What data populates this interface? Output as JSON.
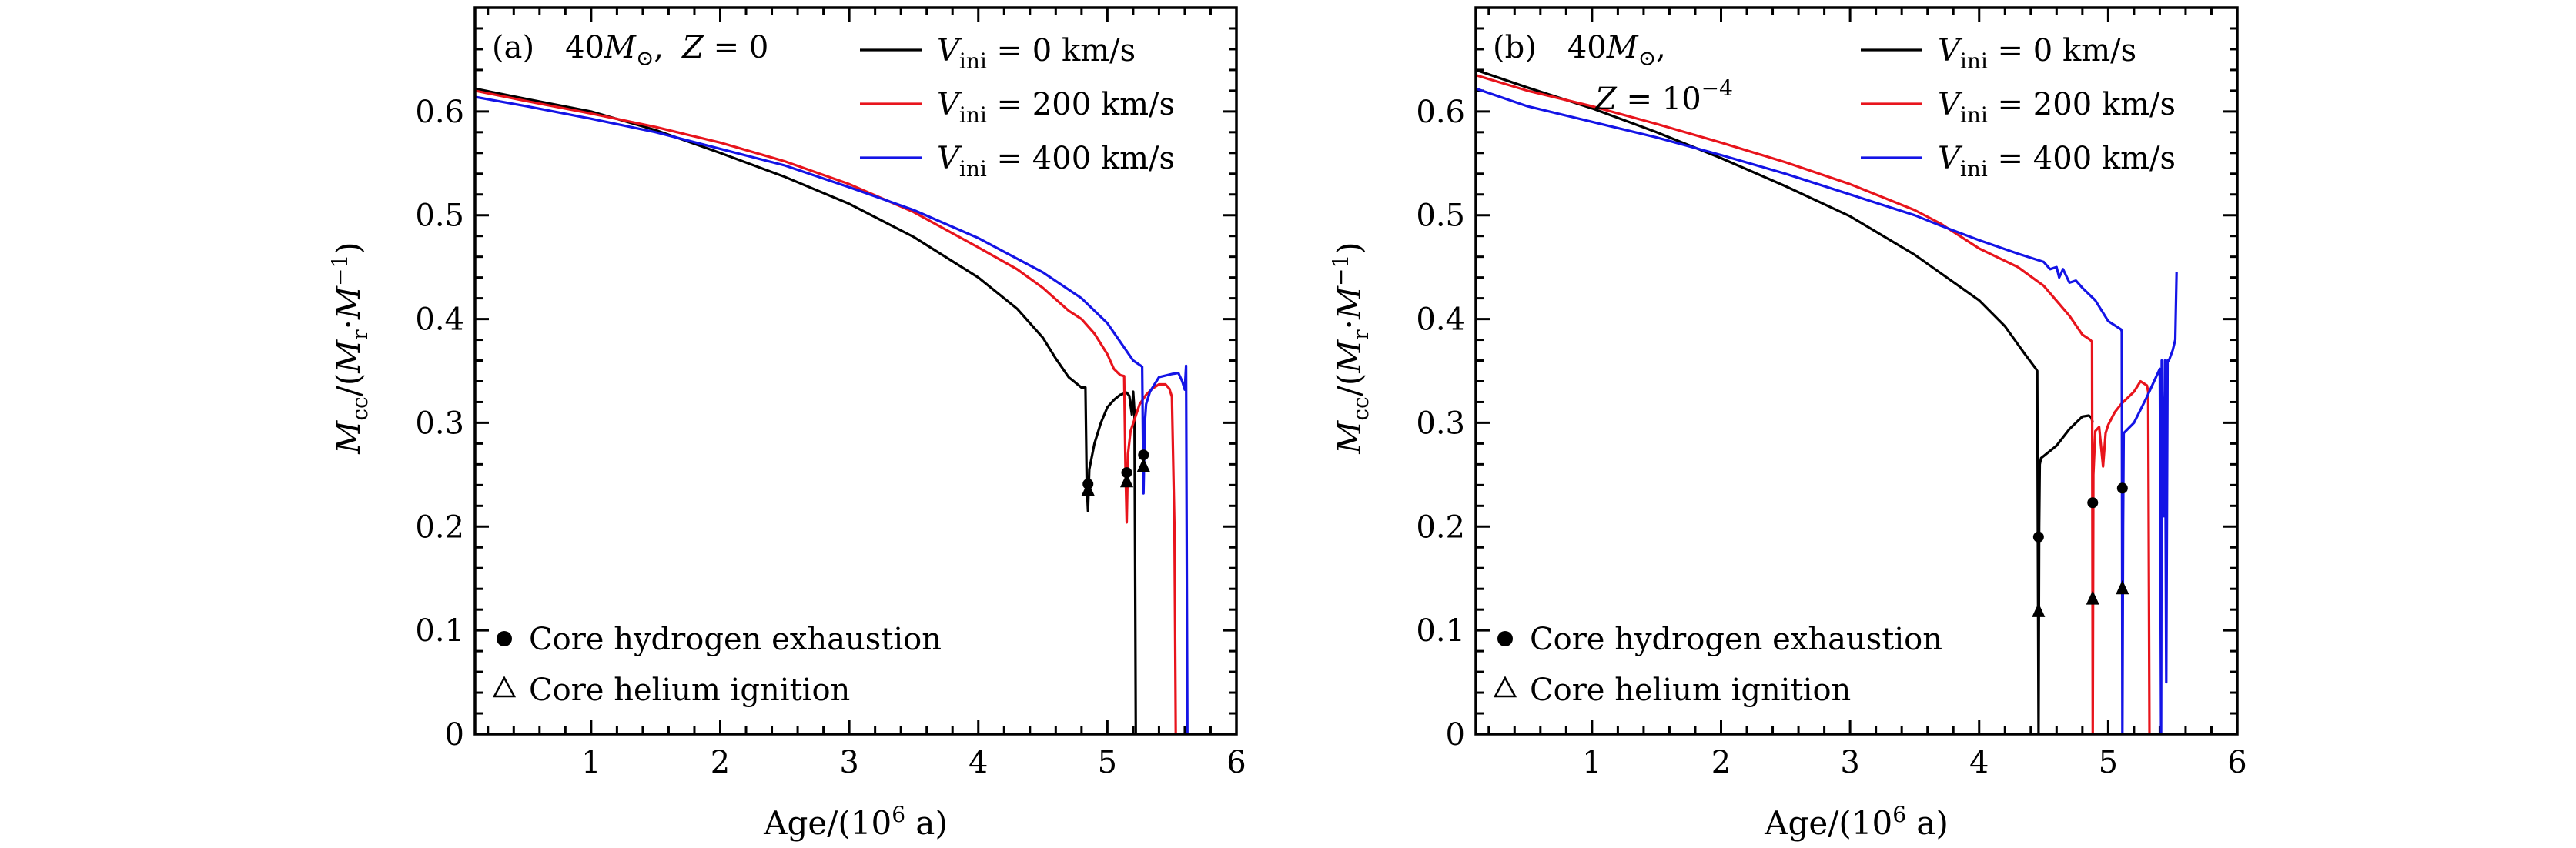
{
  "chart_data": [
    {
      "type": "line",
      "panel_label": "(a)",
      "title": {
        "mass": "40",
        "mass_symbol": "M",
        "mass_sub": "⊙",
        "comma": ",",
        "metal_var": "Z",
        "metal_rest": " = 0",
        "metal_sup": ""
      },
      "xlabel": {
        "text": "Age/(10",
        "sup": "6",
        "tail": " a)"
      },
      "ylabel": {
        "m": "M",
        "m_sub": "cc",
        "mid": "/(",
        "mr": "M",
        "mr_sub": "r",
        "dot": "·",
        "m2": "M",
        "m2_sup": "−1",
        "end": ")"
      },
      "xlim": [
        0.1,
        6
      ],
      "ylim": [
        0,
        0.7
      ],
      "xticks": [
        "1",
        "2",
        "3",
        "4",
        "5",
        "6"
      ],
      "yticks": [
        "0",
        "0.1",
        "0.2",
        "0.3",
        "0.4",
        "0.5",
        "0.6"
      ],
      "series": [
        {
          "name": "V_ini = 0 km/s",
          "label": {
            "var": "V",
            "sub": "ini",
            "rest": " = 0  km/s"
          },
          "color": "#000000",
          "x": [
            0.1,
            0.5,
            1,
            1.5,
            2,
            2.5,
            3,
            3.5,
            4,
            4.3,
            4.5,
            4.6,
            4.7,
            4.8,
            4.83,
            4.84,
            4.85,
            4.86,
            4.9,
            4.95,
            5.0,
            5.05,
            5.1,
            5.15,
            5.17,
            5.19,
            5.2,
            5.21,
            5.22
          ],
          "y": [
            0.622,
            0.612,
            0.6,
            0.582,
            0.56,
            0.537,
            0.511,
            0.479,
            0.44,
            0.41,
            0.382,
            0.362,
            0.344,
            0.334,
            0.334,
            0.24,
            0.215,
            0.255,
            0.28,
            0.3,
            0.315,
            0.322,
            0.327,
            0.329,
            0.326,
            0.308,
            0.33,
            0.31,
            0
          ]
        },
        {
          "name": "V_ini = 200 km/s",
          "label": {
            "var": "V",
            "sub": "ini",
            "rest": " = 200  km/s"
          },
          "color": "#e8141c",
          "x": [
            0.1,
            0.5,
            1,
            1.5,
            2,
            2.5,
            3,
            3.5,
            4,
            4.3,
            4.5,
            4.7,
            4.8,
            4.9,
            5.0,
            5.05,
            5.1,
            5.13,
            5.14,
            5.15,
            5.16,
            5.18,
            5.25,
            5.3,
            5.35,
            5.4,
            5.45,
            5.48,
            5.5,
            5.52,
            5.53
          ],
          "y": [
            0.62,
            0.61,
            0.598,
            0.585,
            0.57,
            0.552,
            0.53,
            0.503,
            0.469,
            0.448,
            0.43,
            0.408,
            0.4,
            0.386,
            0.366,
            0.352,
            0.346,
            0.345,
            0.26,
            0.204,
            0.27,
            0.292,
            0.318,
            0.327,
            0.333,
            0.337,
            0.337,
            0.333,
            0.325,
            0.2,
            0
          ]
        },
        {
          "name": "V_ini = 400 km/s",
          "label": {
            "var": "V",
            "sub": "ini",
            "rest": " = 400  km/s"
          },
          "color": "#1414e6",
          "x": [
            0.1,
            0.5,
            1,
            1.5,
            2,
            2.5,
            3,
            3.5,
            4,
            4.5,
            4.8,
            5.0,
            5.1,
            5.2,
            5.26,
            5.27,
            5.28,
            5.29,
            5.3,
            5.33,
            5.4,
            5.5,
            5.55,
            5.58,
            5.6,
            5.61,
            5.62
          ],
          "y": [
            0.614,
            0.605,
            0.593,
            0.58,
            0.564,
            0.548,
            0.527,
            0.505,
            0.478,
            0.445,
            0.42,
            0.396,
            0.378,
            0.36,
            0.355,
            0.354,
            0.232,
            0.3,
            0.318,
            0.33,
            0.344,
            0.347,
            0.348,
            0.34,
            0.332,
            0.355,
            0
          ]
        }
      ],
      "markers": {
        "hydrogen_exhaustion": {
          "x": [
            4.85,
            5.15,
            5.28
          ],
          "y": [
            0.241,
            0.252,
            0.269
          ]
        },
        "helium_ignition": {
          "x": [
            4.85,
            5.15,
            5.28
          ],
          "y": [
            0.235,
            0.243,
            0.258
          ]
        }
      },
      "marker_legend": {
        "circle": "Core hydrogen exhaustion",
        "triangle": "Core helium ignition"
      }
    },
    {
      "type": "line",
      "panel_label": "(b)",
      "title": {
        "mass": "40",
        "mass_symbol": "M",
        "mass_sub": "⊙",
        "comma": ",",
        "metal_var": "Z",
        "metal_rest": " = 10",
        "metal_sup": "−4"
      },
      "xlabel": {
        "text": "Age/(10",
        "sup": "6",
        "tail": " a)"
      },
      "ylabel": {
        "m": "M",
        "m_sub": "cc",
        "mid": "/(",
        "mr": "M",
        "mr_sub": "r",
        "dot": "·",
        "m2": "M",
        "m2_sup": "−1",
        "end": ")"
      },
      "xlim": [
        0.1,
        6
      ],
      "ylim": [
        0,
        0.7
      ],
      "xticks": [
        "1",
        "2",
        "3",
        "4",
        "5",
        "6"
      ],
      "yticks": [
        "0",
        "0.1",
        "0.2",
        "0.3",
        "0.4",
        "0.5",
        "0.6"
      ],
      "series": [
        {
          "name": "V_ini = 0 km/s",
          "label": {
            "var": "V",
            "sub": "ini",
            "rest": " = 0  km/s"
          },
          "color": "#000000",
          "x": [
            0.1,
            0.5,
            1,
            1.5,
            2,
            2.5,
            3,
            3.5,
            4,
            4.2,
            4.35,
            4.44,
            4.45,
            4.46,
            4.465,
            4.47,
            4.48,
            4.5,
            4.6,
            4.7,
            4.8,
            4.85,
            4.87,
            4.88
          ],
          "y": [
            0.64,
            0.623,
            0.603,
            0.58,
            0.555,
            0.528,
            0.499,
            0.462,
            0.418,
            0.393,
            0.367,
            0.352,
            0.35,
            0.0,
            0.2,
            0.26,
            0.266,
            0.268,
            0.278,
            0.294,
            0.306,
            0.307,
            0.305,
            0.3
          ]
        },
        {
          "name": "V_ini = 200 km/s",
          "label": {
            "var": "V",
            "sub": "ini",
            "rest": " = 200  km/s"
          },
          "color": "#e8141c",
          "x": [
            0.1,
            0.5,
            1,
            1.5,
            2,
            2.5,
            3,
            3.5,
            3.7,
            4,
            4.3,
            4.5,
            4.7,
            4.8,
            4.86,
            4.875,
            4.88,
            4.885,
            4.9,
            4.93,
            4.96,
            4.98,
            5.0,
            5.05,
            5.1,
            5.2,
            5.25,
            5.3,
            5.31,
            5.32
          ],
          "y": [
            0.635,
            0.62,
            0.605,
            0.588,
            0.57,
            0.551,
            0.53,
            0.505,
            0.492,
            0.468,
            0.45,
            0.432,
            0.403,
            0.385,
            0.38,
            0.378,
            0.0,
            0.25,
            0.292,
            0.296,
            0.258,
            0.29,
            0.298,
            0.31,
            0.318,
            0.33,
            0.34,
            0.336,
            0.33,
            0
          ]
        },
        {
          "name": "V_ini = 400 km/s",
          "label": {
            "var": "V",
            "sub": "ini",
            "rest": " = 400  km/s"
          },
          "color": "#1414e6",
          "x": [
            0.1,
            0.5,
            1,
            1.5,
            2,
            2.5,
            3,
            3.5,
            3.7,
            4,
            4.3,
            4.5,
            4.55,
            4.6,
            4.62,
            4.65,
            4.7,
            4.75,
            4.8,
            4.9,
            5.0,
            5.1,
            5.105,
            5.11,
            5.115,
            5.12,
            5.2,
            5.3,
            5.4,
            5.41,
            5.415,
            5.43,
            5.44,
            5.45,
            5.46,
            5.47,
            5.5,
            5.52,
            5.53
          ],
          "y": [
            0.622,
            0.605,
            0.59,
            0.575,
            0.558,
            0.54,
            0.52,
            0.5,
            0.49,
            0.476,
            0.463,
            0.455,
            0.448,
            0.45,
            0.44,
            0.448,
            0.435,
            0.437,
            0.43,
            0.418,
            0.398,
            0.39,
            0.388,
            0.0,
            0.2,
            0.29,
            0.3,
            0.325,
            0.352,
            0.0,
            0.36,
            0.21,
            0.36,
            0.05,
            0.36,
            0.36,
            0.37,
            0.38,
            0.445
          ]
        }
      ],
      "markers": {
        "hydrogen_exhaustion": {
          "x": [
            4.46,
            4.88,
            5.11
          ],
          "y": [
            0.19,
            0.223,
            0.237
          ]
        },
        "helium_ignition": {
          "x": [
            4.46,
            4.88,
            5.11
          ],
          "y": [
            0.118,
            0.13,
            0.14
          ]
        }
      },
      "marker_legend": {
        "circle": "Core hydrogen exhaustion",
        "triangle": "Core helium ignition"
      }
    }
  ]
}
